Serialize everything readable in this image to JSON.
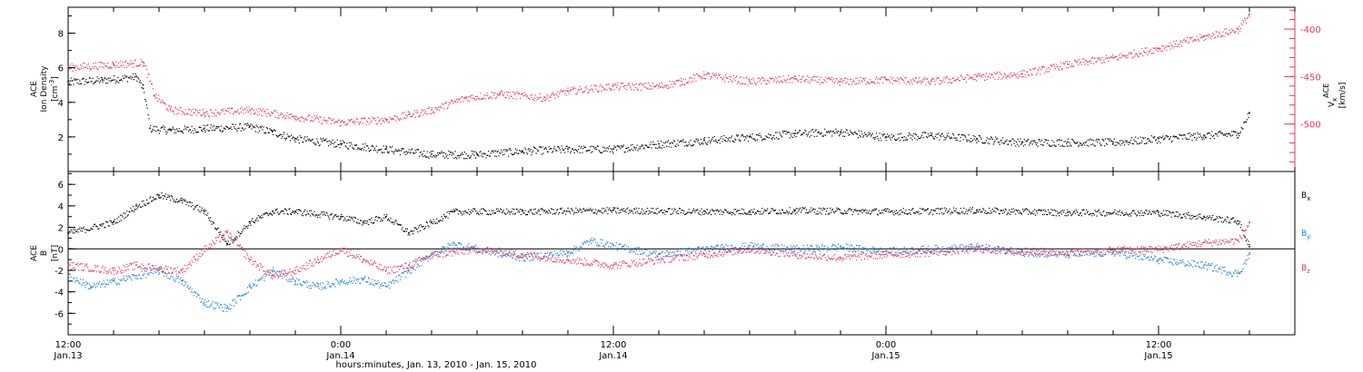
{
  "chart_data": [
    {
      "type": "scatter",
      "panel": "top",
      "ylabel": {
        "line1": "ACE",
        "line2": "Ion Density",
        "unit": "[cm",
        "unit_sup": "-3",
        "unit_end": "]"
      },
      "y2label": {
        "main": "V",
        "sub": "x",
        "sup": "ACE",
        "unit": "[km/s]"
      },
      "ylim": [
        0,
        9.5
      ],
      "y2lim": [
        -550,
        -377
      ],
      "yticks": [
        2,
        4,
        6,
        8
      ],
      "y2ticks": [
        -400,
        -450,
        -500
      ],
      "xlim_hours": [
        0,
        54
      ],
      "series": [
        {
          "name": "Ion Density",
          "color": "#000000",
          "axis": "left",
          "points": [
            [
              0,
              5.2
            ],
            [
              1.5,
              5.3
            ],
            [
              3,
              5.5
            ],
            [
              3.3,
              4.8
            ],
            [
              3.6,
              2.5
            ],
            [
              4.5,
              2.4
            ],
            [
              6,
              2.5
            ],
            [
              8,
              2.6
            ],
            [
              9,
              2.3
            ],
            [
              10,
              1.9
            ],
            [
              12,
              1.6
            ],
            [
              14,
              1.3
            ],
            [
              16,
              1.0
            ],
            [
              18,
              1.0
            ],
            [
              20,
              1.2
            ],
            [
              22,
              1.3
            ],
            [
              24,
              1.3
            ],
            [
              26,
              1.6
            ],
            [
              28,
              1.8
            ],
            [
              30,
              2.0
            ],
            [
              32,
              2.2
            ],
            [
              34,
              2.3
            ],
            [
              36,
              2.0
            ],
            [
              38,
              2.1
            ],
            [
              40,
              1.9
            ],
            [
              42,
              1.7
            ],
            [
              44,
              1.7
            ],
            [
              46,
              1.7
            ],
            [
              48,
              1.9
            ],
            [
              50,
              2.1
            ],
            [
              51.5,
              2.2
            ],
            [
              52,
              3.4
            ]
          ]
        },
        {
          "name": "Vx",
          "color": "#e8365d",
          "axis": "right",
          "points": [
            [
              0,
              -440
            ],
            [
              2,
              -437
            ],
            [
              3.3,
              -435
            ],
            [
              3.8,
              -470
            ],
            [
              4.5,
              -485
            ],
            [
              6,
              -488
            ],
            [
              8,
              -485
            ],
            [
              10,
              -492
            ],
            [
              12,
              -498
            ],
            [
              14,
              -495
            ],
            [
              15,
              -490
            ],
            [
              16,
              -485
            ],
            [
              17.5,
              -472
            ],
            [
              19,
              -468
            ],
            [
              21,
              -472
            ],
            [
              22,
              -465
            ],
            [
              24,
              -460
            ],
            [
              26,
              -460
            ],
            [
              27,
              -455
            ],
            [
              28,
              -448
            ],
            [
              30,
              -455
            ],
            [
              32,
              -452
            ],
            [
              34,
              -455
            ],
            [
              36,
              -453
            ],
            [
              38,
              -455
            ],
            [
              40,
              -450
            ],
            [
              42,
              -447
            ],
            [
              44,
              -437
            ],
            [
              46,
              -430
            ],
            [
              48,
              -420
            ],
            [
              50,
              -408
            ],
            [
              51.5,
              -400
            ],
            [
              52,
              -384
            ]
          ]
        }
      ]
    },
    {
      "type": "scatter",
      "panel": "bottom",
      "ylabel": {
        "line1": "ACE",
        "main": "B",
        "unit": "[nT]"
      },
      "ylim": [
        -8,
        7.2
      ],
      "yticks": [
        6,
        4,
        2,
        0,
        -2,
        -4,
        -6
      ],
      "xlim_hours": [
        0,
        54
      ],
      "series": [
        {
          "name": "Bx",
          "label_main": "B",
          "label_sub": "x",
          "color": "#000000",
          "points": [
            [
              0,
              1.5
            ],
            [
              2,
              2.5
            ],
            [
              3,
              4.0
            ],
            [
              4,
              5.0
            ],
            [
              5,
              4.5
            ],
            [
              6,
              3.5
            ],
            [
              7,
              0.5
            ],
            [
              8,
              2.5
            ],
            [
              9,
              3.5
            ],
            [
              10,
              3.5
            ],
            [
              12,
              3.0
            ],
            [
              13,
              2.5
            ],
            [
              14,
              3.0
            ],
            [
              15,
              1.5
            ],
            [
              16,
              2.5
            ],
            [
              17,
              3.5
            ],
            [
              20,
              3.5
            ],
            [
              24,
              3.6
            ],
            [
              28,
              3.5
            ],
            [
              30,
              3.5
            ],
            [
              32,
              3.6
            ],
            [
              36,
              3.5
            ],
            [
              40,
              3.6
            ],
            [
              44,
              3.4
            ],
            [
              48,
              3.4
            ],
            [
              50,
              3.0
            ],
            [
              51.5,
              2.6
            ],
            [
              52,
              0.2
            ]
          ]
        },
        {
          "name": "By",
          "label_main": "B",
          "label_sub": "y",
          "color": "#1e7fd6",
          "points": [
            [
              0,
              -2.5
            ],
            [
              1,
              -3.5
            ],
            [
              2,
              -3.0
            ],
            [
              3,
              -2.5
            ],
            [
              4,
              -2.0
            ],
            [
              5,
              -3.0
            ],
            [
              6,
              -5.0
            ],
            [
              7,
              -5.5
            ],
            [
              8,
              -3.5
            ],
            [
              9,
              -2.0
            ],
            [
              10,
              -3.0
            ],
            [
              11,
              -3.5
            ],
            [
              12,
              -3.0
            ],
            [
              13,
              -2.8
            ],
            [
              14,
              -3.5
            ],
            [
              15,
              -2.0
            ],
            [
              16,
              -0.5
            ],
            [
              17,
              0.5
            ],
            [
              18,
              0
            ],
            [
              20,
              -0.8
            ],
            [
              22,
              -0.3
            ],
            [
              23,
              0.8
            ],
            [
              24,
              0.3
            ],
            [
              26,
              -0.5
            ],
            [
              28,
              0
            ],
            [
              30,
              0.3
            ],
            [
              32,
              0
            ],
            [
              34,
              0.2
            ],
            [
              36,
              -0.2
            ],
            [
              38,
              0
            ],
            [
              40,
              0.2
            ],
            [
              42,
              -0.3
            ],
            [
              44,
              -0.5
            ],
            [
              46,
              -0.3
            ],
            [
              48,
              -1.0
            ],
            [
              50,
              -1.5
            ],
            [
              51.5,
              -2.3
            ],
            [
              52,
              -0.5
            ]
          ]
        },
        {
          "name": "Bz",
          "label_main": "B",
          "label_sub": "z",
          "color": "#e8365d",
          "points": [
            [
              0,
              -1.5
            ],
            [
              2,
              -2.0
            ],
            [
              3,
              -1.5
            ],
            [
              4,
              -1.8
            ],
            [
              5,
              -2.0
            ],
            [
              6,
              0
            ],
            [
              7,
              1.5
            ],
            [
              8,
              -1.0
            ],
            [
              9,
              -2.5
            ],
            [
              10,
              -2.0
            ],
            [
              11,
              -1.0
            ],
            [
              12,
              0
            ],
            [
              13,
              -1.0
            ],
            [
              14,
              -2.0
            ],
            [
              15,
              -1.5
            ],
            [
              16,
              -0.5
            ],
            [
              17,
              -0.3
            ],
            [
              18,
              0
            ],
            [
              20,
              -0.5
            ],
            [
              22,
              -1.0
            ],
            [
              24,
              -1.5
            ],
            [
              26,
              -1.0
            ],
            [
              28,
              -0.5
            ],
            [
              30,
              0
            ],
            [
              32,
              -0.5
            ],
            [
              34,
              -0.8
            ],
            [
              36,
              -0.5
            ],
            [
              38,
              -0.3
            ],
            [
              40,
              0
            ],
            [
              42,
              -0.2
            ],
            [
              44,
              -0.3
            ],
            [
              46,
              -0.1
            ],
            [
              48,
              0
            ],
            [
              50,
              0.6
            ],
            [
              51.5,
              0.8
            ],
            [
              52,
              2.5
            ]
          ]
        }
      ]
    }
  ],
  "x_axis": {
    "title": "hours:minutes, Jan. 13, 2010 - Jan. 15, 2010",
    "labels": [
      {
        "h": 0,
        "time": "12:00",
        "date": "Jan.13"
      },
      {
        "h": 12,
        "time": "0:00",
        "date": "Jan.14"
      },
      {
        "h": 24,
        "time": "12:00",
        "date": "Jan.14"
      },
      {
        "h": 36,
        "time": "0:00",
        "date": "Jan.15"
      },
      {
        "h": 48,
        "time": "12:00",
        "date": "Jan.15"
      }
    ]
  },
  "colors": {
    "black": "#000000",
    "pink": "#e8365d",
    "blue": "#1e7fd6"
  }
}
